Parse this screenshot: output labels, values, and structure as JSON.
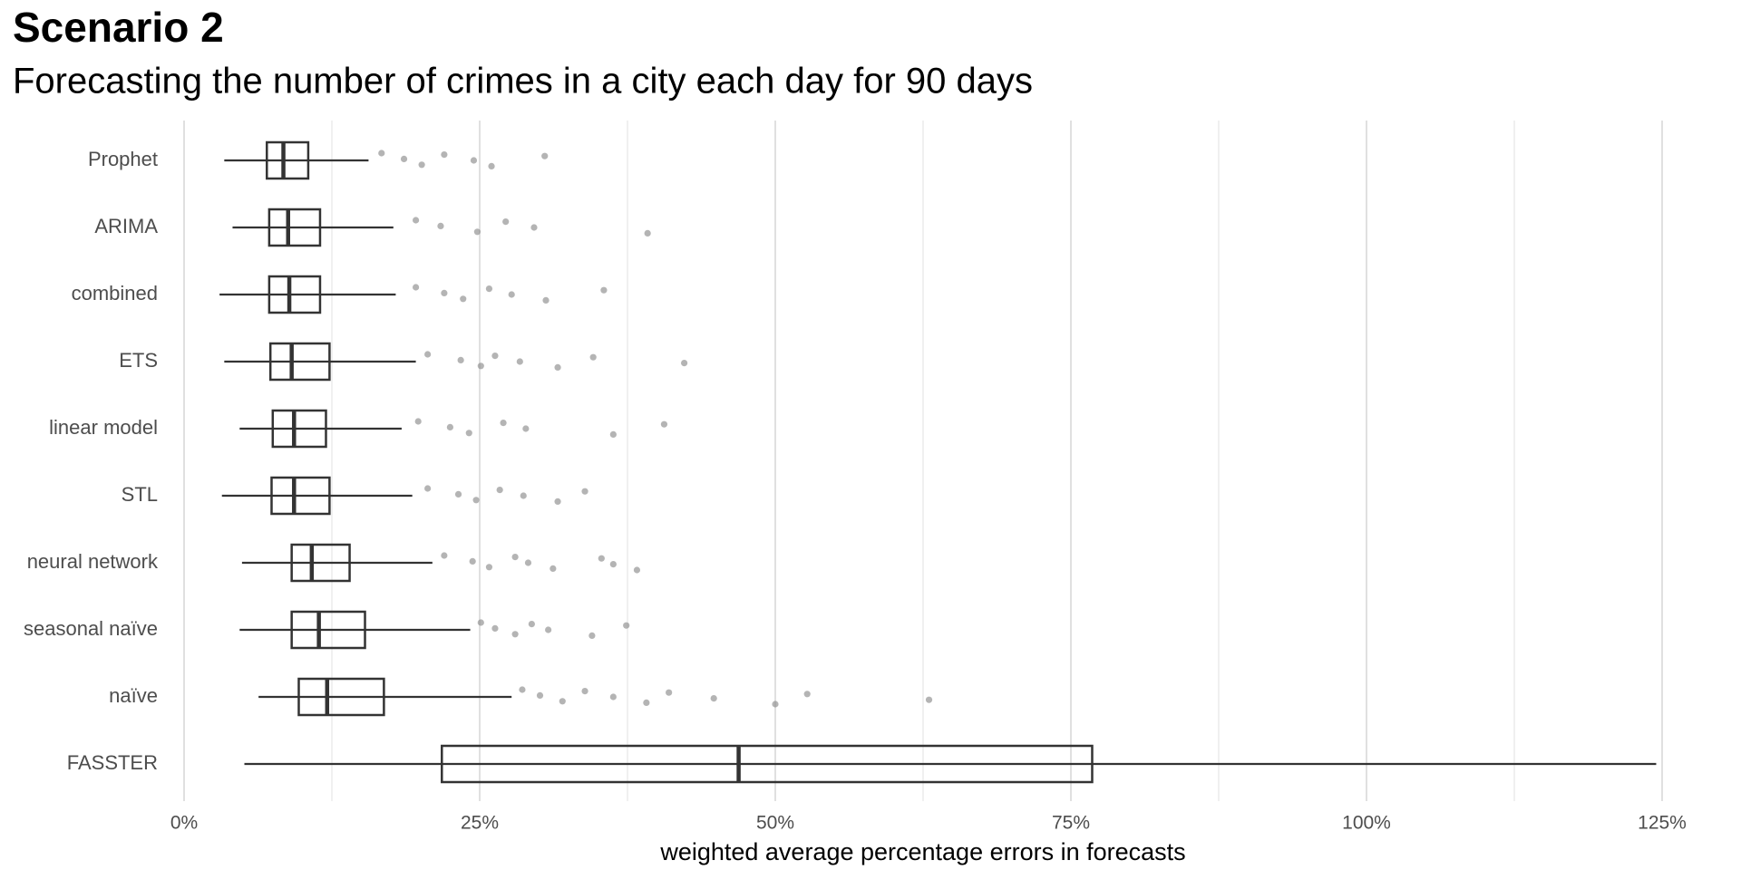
{
  "chart_data": {
    "type": "boxplot",
    "title": "Scenario 2",
    "subtitle": "Forecasting the number of crimes in a city each day for 90 days",
    "x_label": "weighted average percentage errors in forecasts",
    "categories": [
      "Prophet",
      "ARIMA",
      "combined",
      "ETS",
      "linear model",
      "STL",
      "neural network",
      "seasonal naïve",
      "naïve",
      "FASSTER"
    ],
    "boxes": [
      {
        "low": 3.4,
        "q1": 7.0,
        "median": 8.4,
        "q3": 10.5,
        "high": 15.6,
        "outliers": [
          16.7,
          18.6,
          20.1,
          22,
          24.5,
          26,
          30.5
        ]
      },
      {
        "low": 4.1,
        "q1": 7.2,
        "median": 8.8,
        "q3": 11.5,
        "high": 17.7,
        "outliers": [
          19.6,
          21.7,
          24.8,
          27.2,
          29.6,
          39.2
        ]
      },
      {
        "low": 3.0,
        "q1": 7.2,
        "median": 8.9,
        "q3": 11.5,
        "high": 17.9,
        "outliers": [
          19.6,
          22,
          23.6,
          25.8,
          27.7,
          30.6,
          35.5
        ]
      },
      {
        "low": 3.4,
        "q1": 7.3,
        "median": 9.1,
        "q3": 12.3,
        "high": 19.6,
        "outliers": [
          20.6,
          23.4,
          25.1,
          26.3,
          28.4,
          31.6,
          34.6,
          42.3
        ]
      },
      {
        "low": 4.7,
        "q1": 7.5,
        "median": 9.3,
        "q3": 12.0,
        "high": 18.4,
        "outliers": [
          19.8,
          22.5,
          24.1,
          27.0,
          28.9,
          36.3,
          40.6
        ]
      },
      {
        "low": 3.2,
        "q1": 7.4,
        "median": 9.3,
        "q3": 12.3,
        "high": 19.3,
        "outliers": [
          20.6,
          23.2,
          24.7,
          26.7,
          28.7,
          31.6,
          33.9
        ]
      },
      {
        "low": 4.9,
        "q1": 9.1,
        "median": 10.8,
        "q3": 14.0,
        "high": 21.0,
        "outliers": [
          22,
          24.4,
          25.8,
          28,
          29.1,
          31.2,
          35.3,
          36.3,
          38.3
        ]
      },
      {
        "low": 4.7,
        "q1": 9.1,
        "median": 11.4,
        "q3": 15.3,
        "high": 24.2,
        "outliers": [
          25.1,
          26.3,
          28,
          29.4,
          30.8,
          34.5,
          37.4
        ]
      },
      {
        "low": 6.3,
        "q1": 9.7,
        "median": 12.1,
        "q3": 16.9,
        "high": 27.7,
        "outliers": [
          28.6,
          30.1,
          32,
          33.9,
          36.3,
          39.1,
          41,
          44.8,
          50,
          52.7,
          63
        ]
      },
      {
        "low": 5.1,
        "q1": 21.8,
        "median": 46.9,
        "q3": 76.8,
        "high": 124.5,
        "outliers": []
      }
    ],
    "box_color": "#333333",
    "point_color": "#8c8c8c",
    "xlim": [
      0,
      125
    ],
    "xticks": [
      {
        "value": 0,
        "label": "0%"
      },
      {
        "value": 25,
        "label": "25%"
      },
      {
        "value": 50,
        "label": "50%"
      },
      {
        "value": 75,
        "label": "75%"
      },
      {
        "value": 100,
        "label": "100%"
      },
      {
        "value": 125,
        "label": "125%"
      }
    ],
    "xminor": [
      12.5,
      37.5,
      62.5,
      87.5,
      112.5
    ],
    "grid": true
  }
}
